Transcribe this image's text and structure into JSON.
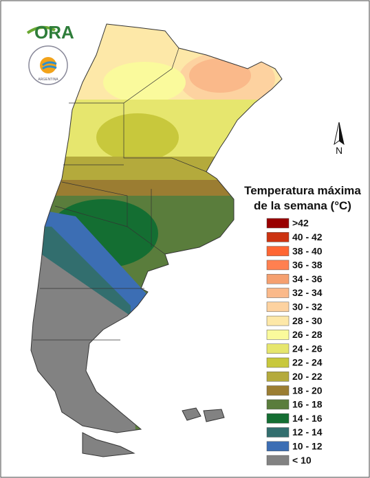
{
  "logo": {
    "text": "ORA",
    "seal": "ARGENTINA"
  },
  "north": "N",
  "legend": {
    "title": [
      "Temperatura máxima",
      "de la semana (°C)"
    ],
    "items": [
      {
        "label": ">42",
        "color": "#990000"
      },
      {
        "label": "40 - 42",
        "color": "#cc3311"
      },
      {
        "label": "38 - 40",
        "color": "#ff6633"
      },
      {
        "label": "36 - 38",
        "color": "#ff8050"
      },
      {
        "label": "34 - 36",
        "color": "#f5a070"
      },
      {
        "label": "32 - 34",
        "color": "#fab98a"
      },
      {
        "label": "30 - 32",
        "color": "#fdd2a0"
      },
      {
        "label": "28 - 30",
        "color": "#fde8a8"
      },
      {
        "label": "26 - 28",
        "color": "#fafa9c"
      },
      {
        "label": "24 - 26",
        "color": "#e6e66e"
      },
      {
        "label": "22 - 24",
        "color": "#c8c83c"
      },
      {
        "label": "20 - 22",
        "color": "#b4aa3c"
      },
      {
        "label": "18 - 20",
        "color": "#9b7d32"
      },
      {
        "label": "16 - 18",
        "color": "#5a7d3c"
      },
      {
        "label": "14 - 16",
        "color": "#146e32"
      },
      {
        "label": "12 - 14",
        "color": "#326e6e"
      },
      {
        "label": "10 - 12",
        "color": "#3c6eb4"
      },
      {
        "label": "< 10",
        "color": "#828282"
      }
    ]
  }
}
